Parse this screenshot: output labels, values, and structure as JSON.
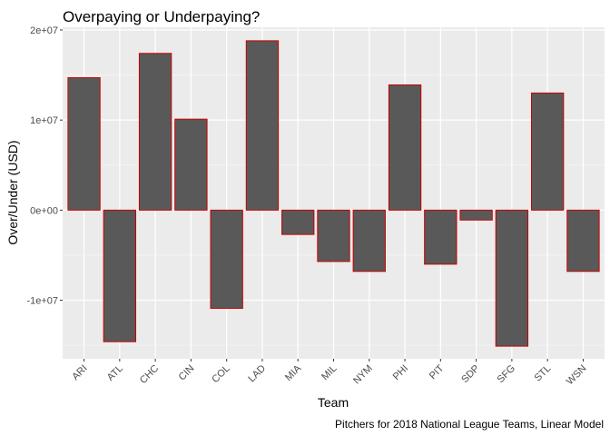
{
  "chart_data": {
    "type": "bar",
    "title": "Overpaying or Underpaying?",
    "xlabel": "Team",
    "ylabel": "Over/Under (USD)",
    "caption": "Pitchers for 2018 National League Teams, Linear Model",
    "categories": [
      "ARI",
      "ATL",
      "CHC",
      "CIN",
      "COL",
      "LAD",
      "MIA",
      "MIL",
      "NYM",
      "PHI",
      "PIT",
      "SDP",
      "SFG",
      "STL",
      "WSN"
    ],
    "values": [
      14700000,
      -14600000,
      17400000,
      10100000,
      -10900000,
      18800000,
      -2700000,
      -5700000,
      -6800000,
      13900000,
      -6000000,
      -1100000,
      -15100000,
      13000000,
      -6800000
    ],
    "ylim": [
      -16500000,
      20300000
    ],
    "yticks": [
      -10000000,
      0,
      10000000,
      20000000
    ],
    "ytick_labels": [
      "-1e+07",
      "0e+00",
      "1e+07",
      "2e+07"
    ],
    "grid": true,
    "colors": {
      "panel": "#ebebeb",
      "grid_major": "#ffffff",
      "bar_fill": "#595959",
      "bar_outline": "#cc0000"
    }
  }
}
